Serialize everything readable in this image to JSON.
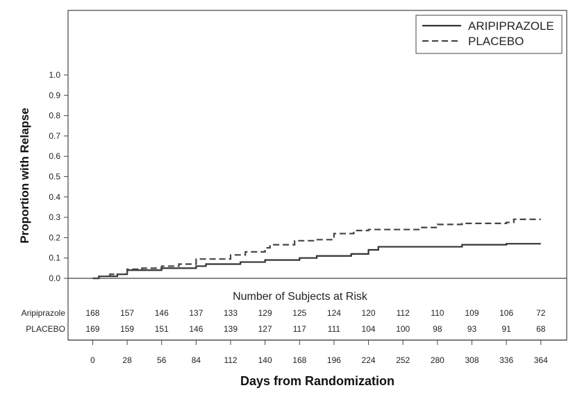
{
  "chart_data": {
    "type": "line",
    "xlabel": "Days from Randomization",
    "ylabel": "Proportion with Relapse",
    "xlim": [
      -20,
      385
    ],
    "ylim": [
      0,
      1.0
    ],
    "x_ticks": [
      0,
      28,
      56,
      84,
      112,
      140,
      168,
      196,
      224,
      252,
      280,
      308,
      336,
      364
    ],
    "y_ticks": [
      "0.0",
      "0.1",
      "0.2",
      "0.3",
      "0.4",
      "0.5",
      "0.6",
      "0.7",
      "0.8",
      "0.9",
      "1.0"
    ],
    "grid": false,
    "legend_position": "top-right",
    "series": [
      {
        "name": "ARIPIPRAZOLE",
        "line_style": "solid",
        "color": "#333333",
        "steps": [
          [
            0,
            0.0
          ],
          [
            5,
            0.01
          ],
          [
            20,
            0.02
          ],
          [
            28,
            0.04
          ],
          [
            56,
            0.05
          ],
          [
            84,
            0.06
          ],
          [
            92,
            0.07
          ],
          [
            120,
            0.08
          ],
          [
            140,
            0.09
          ],
          [
            168,
            0.1
          ],
          [
            182,
            0.11
          ],
          [
            210,
            0.12
          ],
          [
            224,
            0.14
          ],
          [
            232,
            0.155
          ],
          [
            300,
            0.165
          ],
          [
            336,
            0.17
          ],
          [
            364,
            0.17
          ]
        ]
      },
      {
        "name": "PLACEBO",
        "line_style": "dashed",
        "color": "#444444",
        "steps": [
          [
            0,
            0.0
          ],
          [
            5,
            0.01
          ],
          [
            14,
            0.02
          ],
          [
            28,
            0.045
          ],
          [
            40,
            0.05
          ],
          [
            56,
            0.06
          ],
          [
            70,
            0.07
          ],
          [
            84,
            0.095
          ],
          [
            112,
            0.115
          ],
          [
            124,
            0.13
          ],
          [
            140,
            0.15
          ],
          [
            144,
            0.165
          ],
          [
            164,
            0.185
          ],
          [
            180,
            0.19
          ],
          [
            196,
            0.22
          ],
          [
            212,
            0.235
          ],
          [
            224,
            0.24
          ],
          [
            266,
            0.25
          ],
          [
            280,
            0.265
          ],
          [
            300,
            0.27
          ],
          [
            336,
            0.275
          ],
          [
            342,
            0.29
          ],
          [
            364,
            0.29
          ]
        ]
      }
    ],
    "risk_table": {
      "title": "Number of Subjects at Risk",
      "rows": [
        {
          "label": "Aripiprazole",
          "values": [
            168,
            157,
            146,
            137,
            133,
            129,
            125,
            124,
            120,
            112,
            110,
            109,
            106,
            72
          ]
        },
        {
          "label": "PLACEBO",
          "values": [
            169,
            159,
            151,
            146,
            139,
            127,
            117,
            111,
            104,
            100,
            98,
            93,
            91,
            68
          ]
        }
      ]
    }
  }
}
